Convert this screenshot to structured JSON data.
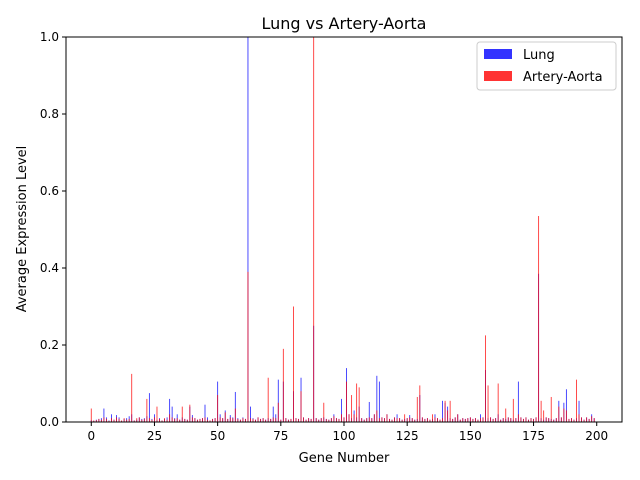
{
  "chart_data": {
    "type": "bar",
    "title": "Lung vs Artery-Aorta",
    "xlabel": "Gene Number",
    "ylabel": "Average Expression Level",
    "xlim": [
      -10,
      210
    ],
    "ylim": [
      0,
      1.0
    ],
    "xticks": [
      "0",
      "25",
      "50",
      "75",
      "100",
      "125",
      "150",
      "175",
      "200"
    ],
    "yticks": [
      "0.0",
      "0.2",
      "0.4",
      "0.6",
      "0.8",
      "1.0"
    ],
    "grid": false,
    "legend_position": "top-right",
    "x": [
      0,
      1,
      2,
      3,
      4,
      5,
      6,
      7,
      8,
      9,
      10,
      11,
      12,
      13,
      14,
      15,
      16,
      17,
      18,
      19,
      20,
      21,
      22,
      23,
      24,
      25,
      26,
      27,
      28,
      29,
      30,
      31,
      32,
      33,
      34,
      35,
      36,
      37,
      38,
      39,
      40,
      41,
      42,
      43,
      44,
      45,
      46,
      47,
      48,
      49,
      50,
      51,
      52,
      53,
      54,
      55,
      56,
      57,
      58,
      59,
      60,
      61,
      62,
      63,
      64,
      65,
      66,
      67,
      68,
      69,
      70,
      71,
      72,
      73,
      74,
      75,
      76,
      77,
      78,
      79,
      80,
      81,
      82,
      83,
      84,
      85,
      86,
      87,
      88,
      89,
      90,
      91,
      92,
      93,
      94,
      95,
      96,
      97,
      98,
      99,
      100,
      101,
      102,
      103,
      104,
      105,
      106,
      107,
      108,
      109,
      110,
      111,
      112,
      113,
      114,
      115,
      116,
      117,
      118,
      119,
      120,
      121,
      122,
      123,
      124,
      125,
      126,
      127,
      128,
      129,
      130,
      131,
      132,
      133,
      134,
      135,
      136,
      137,
      138,
      139,
      140,
      141,
      142,
      143,
      144,
      145,
      146,
      147,
      148,
      149,
      150,
      151,
      152,
      153,
      154,
      155,
      156,
      157,
      158,
      159,
      160,
      161,
      162,
      163,
      164,
      165,
      166,
      167,
      168,
      169,
      170,
      171,
      172,
      173,
      174,
      175,
      176,
      177,
      178,
      179,
      180,
      181,
      182,
      183,
      184,
      185,
      186,
      187,
      188,
      189,
      190,
      191,
      192,
      193,
      194,
      195,
      196,
      197,
      198,
      199
    ],
    "series": [
      {
        "name": "Lung",
        "color": "#0000ff",
        "values": [
          0.005,
          0.003,
          0.006,
          0.008,
          0.01,
          0.035,
          0.012,
          0.004,
          0.02,
          0.006,
          0.018,
          0.012,
          0.003,
          0.008,
          0.01,
          0.015,
          0.02,
          0.004,
          0.006,
          0.012,
          0.008,
          0.01,
          0.015,
          0.075,
          0.008,
          0.02,
          0.006,
          0.01,
          0.004,
          0.008,
          0.012,
          0.06,
          0.04,
          0.01,
          0.02,
          0.006,
          0.012,
          0.008,
          0.006,
          0.04,
          0.018,
          0.01,
          0.006,
          0.008,
          0.01,
          0.045,
          0.012,
          0.004,
          0.008,
          0.01,
          0.105,
          0.02,
          0.01,
          0.03,
          0.008,
          0.018,
          0.012,
          0.078,
          0.01,
          0.006,
          0.012,
          0.008,
          1.0,
          0.04,
          0.01,
          0.006,
          0.012,
          0.008,
          0.01,
          0.006,
          0.01,
          0.008,
          0.04,
          0.02,
          0.11,
          0.006,
          0.105,
          0.01,
          0.006,
          0.008,
          0.08,
          0.01,
          0.008,
          0.115,
          0.012,
          0.006,
          0.01,
          0.008,
          0.25,
          0.01,
          0.006,
          0.01,
          0.012,
          0.008,
          0.006,
          0.01,
          0.02,
          0.01,
          0.008,
          0.06,
          0.012,
          0.14,
          0.02,
          0.01,
          0.03,
          0.012,
          0.04,
          0.01,
          0.006,
          0.01,
          0.052,
          0.01,
          0.02,
          0.12,
          0.105,
          0.012,
          0.01,
          0.02,
          0.008,
          0.006,
          0.012,
          0.02,
          0.01,
          0.006,
          0.008,
          0.01,
          0.018,
          0.01,
          0.006,
          0.008,
          0.07,
          0.012,
          0.008,
          0.01,
          0.006,
          0.008,
          0.02,
          0.01,
          0.006,
          0.055,
          0.05,
          0.04,
          0.01,
          0.008,
          0.012,
          0.02,
          0.006,
          0.01,
          0.008,
          0.01,
          0.012,
          0.008,
          0.01,
          0.006,
          0.02,
          0.012,
          0.135,
          0.01,
          0.012,
          0.008,
          0.01,
          0.02,
          0.006,
          0.01,
          0.008,
          0.012,
          0.01,
          0.006,
          0.01,
          0.105,
          0.012,
          0.008,
          0.012,
          0.006,
          0.01,
          0.008,
          0.012,
          0.385,
          0.01,
          0.006,
          0.012,
          0.01,
          0.008,
          0.006,
          0.01,
          0.055,
          0.012,
          0.05,
          0.085,
          0.008,
          0.01,
          0.006,
          0.01,
          0.055,
          0.012,
          0.006,
          0.012,
          0.008,
          0.02,
          0.01
        ]
      },
      {
        "name": "Artery-Aorta",
        "color": "#ff0000",
        "values": [
          0.035,
          0.004,
          0.005,
          0.008,
          0.006,
          0.012,
          0.008,
          0.003,
          0.01,
          0.006,
          0.012,
          0.008,
          0.004,
          0.01,
          0.006,
          0.008,
          0.125,
          0.004,
          0.01,
          0.012,
          0.006,
          0.008,
          0.06,
          0.01,
          0.006,
          0.012,
          0.04,
          0.008,
          0.004,
          0.01,
          0.006,
          0.02,
          0.012,
          0.008,
          0.01,
          0.006,
          0.04,
          0.008,
          0.006,
          0.045,
          0.012,
          0.01,
          0.006,
          0.008,
          0.01,
          0.012,
          0.006,
          0.004,
          0.008,
          0.01,
          0.07,
          0.012,
          0.01,
          0.025,
          0.008,
          0.012,
          0.01,
          0.035,
          0.008,
          0.006,
          0.01,
          0.008,
          0.39,
          0.01,
          0.008,
          0.006,
          0.012,
          0.008,
          0.01,
          0.006,
          0.115,
          0.008,
          0.012,
          0.01,
          0.05,
          0.006,
          0.19,
          0.01,
          0.006,
          0.008,
          0.3,
          0.01,
          0.008,
          0.08,
          0.012,
          0.006,
          0.01,
          0.008,
          1.0,
          0.01,
          0.006,
          0.01,
          0.05,
          0.008,
          0.006,
          0.01,
          0.015,
          0.01,
          0.008,
          0.02,
          0.012,
          0.105,
          0.02,
          0.07,
          0.02,
          0.1,
          0.09,
          0.01,
          0.006,
          0.01,
          0.012,
          0.01,
          0.02,
          0.03,
          0.01,
          0.012,
          0.01,
          0.02,
          0.008,
          0.006,
          0.012,
          0.01,
          0.01,
          0.006,
          0.02,
          0.01,
          0.012,
          0.01,
          0.006,
          0.065,
          0.095,
          0.012,
          0.008,
          0.01,
          0.006,
          0.02,
          0.012,
          0.01,
          0.006,
          0.01,
          0.055,
          0.03,
          0.055,
          0.008,
          0.012,
          0.02,
          0.006,
          0.01,
          0.008,
          0.01,
          0.012,
          0.008,
          0.01,
          0.006,
          0.01,
          0.012,
          0.225,
          0.095,
          0.012,
          0.008,
          0.01,
          0.1,
          0.006,
          0.01,
          0.035,
          0.012,
          0.01,
          0.06,
          0.01,
          0.02,
          0.012,
          0.008,
          0.012,
          0.006,
          0.01,
          0.008,
          0.012,
          0.535,
          0.055,
          0.03,
          0.012,
          0.01,
          0.065,
          0.006,
          0.01,
          0.04,
          0.012,
          0.035,
          0.03,
          0.008,
          0.01,
          0.006,
          0.11,
          0.02,
          0.012,
          0.006,
          0.012,
          0.008,
          0.015,
          0.01
        ]
      }
    ]
  }
}
